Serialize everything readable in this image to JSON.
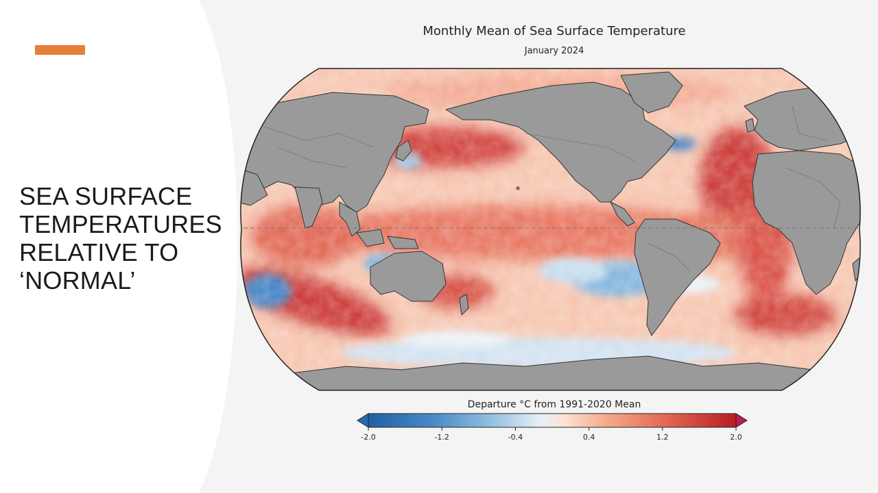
{
  "slide": {
    "title_lines": [
      "SEA SURFACE",
      "TEMPERATURES",
      "RELATIVE TO",
      "‘NORMAL’"
    ],
    "accent_color": "#e57f35"
  },
  "map": {
    "title": "Monthly Mean of Sea Surface Temperature",
    "subtitle": "January 2024",
    "projection": "Robinson",
    "land_color": "#9a9a9a",
    "equator_line": "dashed"
  },
  "legend": {
    "title": "Departure °C from 1991-2020 Mean",
    "ticks": [
      "-2.0",
      "-1.2",
      "-0.4",
      "0.4",
      "1.2",
      "2.0"
    ],
    "min": -2.0,
    "max": 2.0,
    "colors": [
      "#1f5fa6",
      "#4a8cc6",
      "#9cc4e2",
      "#e8f1f8",
      "#fbe3d6",
      "#f5a98a",
      "#e0634f",
      "#b71d24"
    ],
    "under_color": "#2a6ab0",
    "over_color": "#b8204f"
  }
}
